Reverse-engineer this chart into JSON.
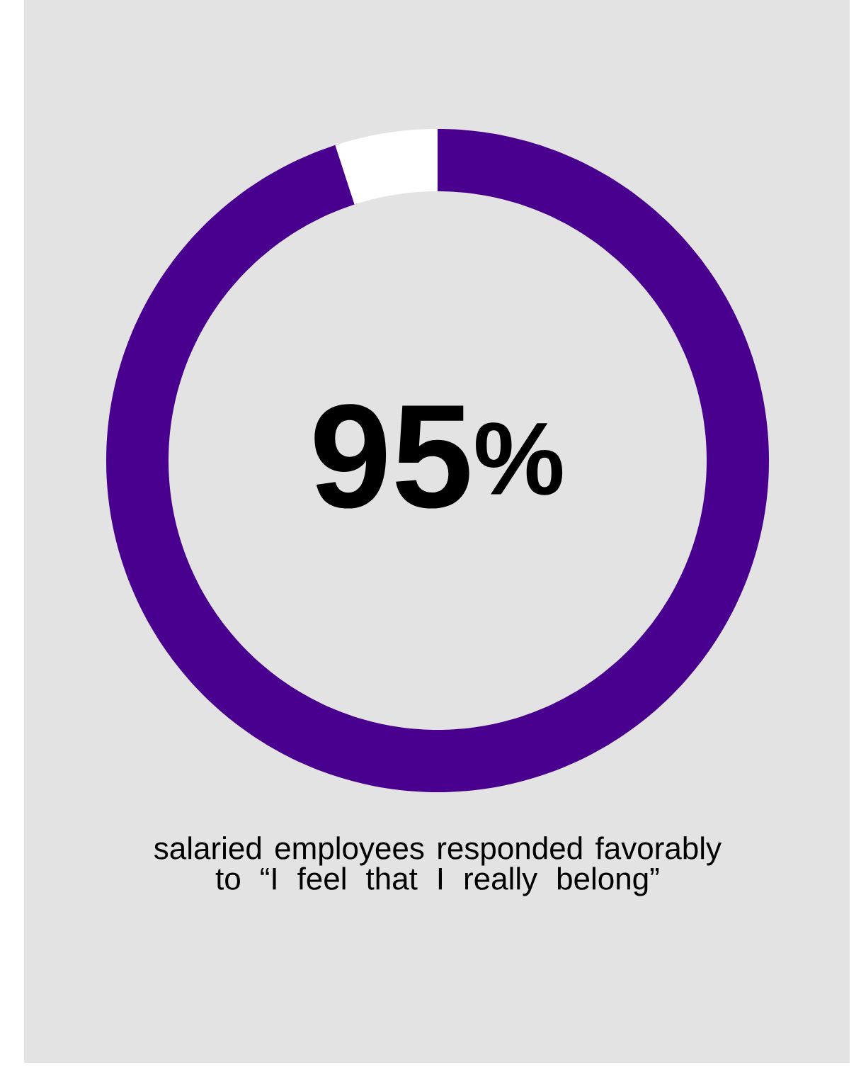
{
  "chart_data": {
    "type": "donut",
    "categories": [
      null,
      null
    ],
    "values": [
      95,
      5
    ],
    "colors": [
      "#4a008f",
      "#ffffff"
    ],
    "value_labels": [
      "95$^{%}$",
      null
    ],
    "annotations": [
      "salaried employees responded favorably to “I feel that I really belong”"
    ]
  }
}
